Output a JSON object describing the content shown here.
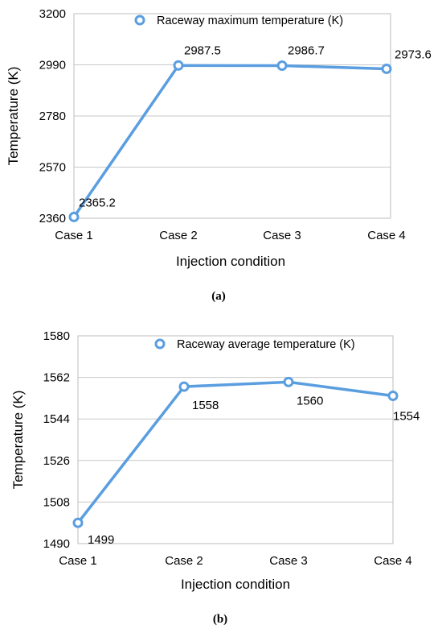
{
  "chart_data": [
    {
      "type": "line",
      "categories": [
        "Case 1",
        "Case 2",
        "Case 3",
        "Case 4"
      ],
      "series": [
        {
          "name": "Raceway maximum temperature (K)",
          "values": [
            2365.2,
            2987.5,
            2986.7,
            2973.6
          ]
        }
      ],
      "data_labels": [
        "2365.2",
        "2987.5",
        "2986.7",
        "2973.6"
      ],
      "xlabel": "Injection condition",
      "ylabel": "Temperature (K)",
      "ylim": [
        2360,
        3200
      ],
      "yticks": [
        2360,
        2570,
        2780,
        2990,
        3200
      ],
      "grid": true,
      "legend_position": "top",
      "caption": "(a)",
      "color": "#5a9ee0"
    },
    {
      "type": "line",
      "categories": [
        "Case 1",
        "Case 2",
        "Case 3",
        "Case 4"
      ],
      "series": [
        {
          "name": "Raceway average temperature (K)",
          "values": [
            1499,
            1558,
            1560,
            1554
          ]
        }
      ],
      "data_labels": [
        "1499",
        "1558",
        "1560",
        "1554"
      ],
      "xlabel": "Injection condition",
      "ylabel": "Temperature (K)",
      "ylim": [
        1490,
        1580
      ],
      "yticks": [
        1490,
        1508,
        1526,
        1544,
        1562,
        1580
      ],
      "grid": true,
      "legend_position": "top",
      "caption": "(b)",
      "color": "#5a9ee0"
    }
  ]
}
